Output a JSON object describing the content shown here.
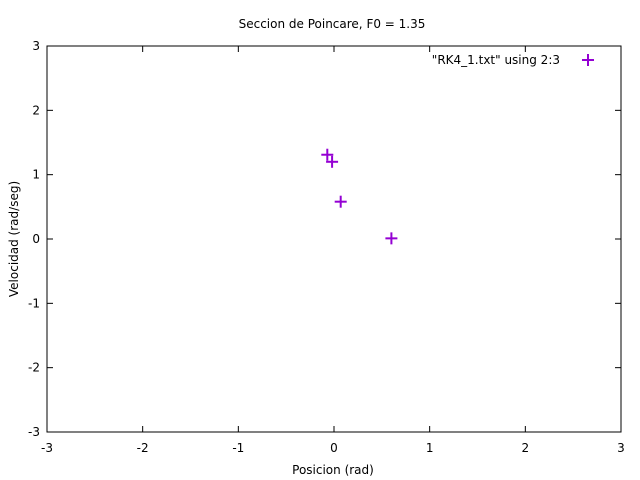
{
  "chart_data": {
    "type": "scatter",
    "title": "Seccion de Poincare, F0 = 1.35",
    "xlabel": "Posicion (rad)",
    "ylabel": "Velocidad (rad/seg)",
    "xlim": [
      -3,
      3
    ],
    "ylim": [
      -3,
      3
    ],
    "xticks": [
      -3,
      -2,
      -1,
      0,
      1,
      2,
      3
    ],
    "yticks": [
      -3,
      -2,
      -1,
      0,
      1,
      2,
      3
    ],
    "grid": false,
    "legend_position": "top-right",
    "series": [
      {
        "name": "\"RK4_1.txt\" using 2:3",
        "marker": "plus",
        "color": "#9400d3",
        "points": [
          {
            "x": -0.07,
            "y": 1.31
          },
          {
            "x": -0.02,
            "y": 1.2
          },
          {
            "x": 0.07,
            "y": 0.58
          },
          {
            "x": 0.6,
            "y": 0.01
          }
        ]
      }
    ]
  }
}
